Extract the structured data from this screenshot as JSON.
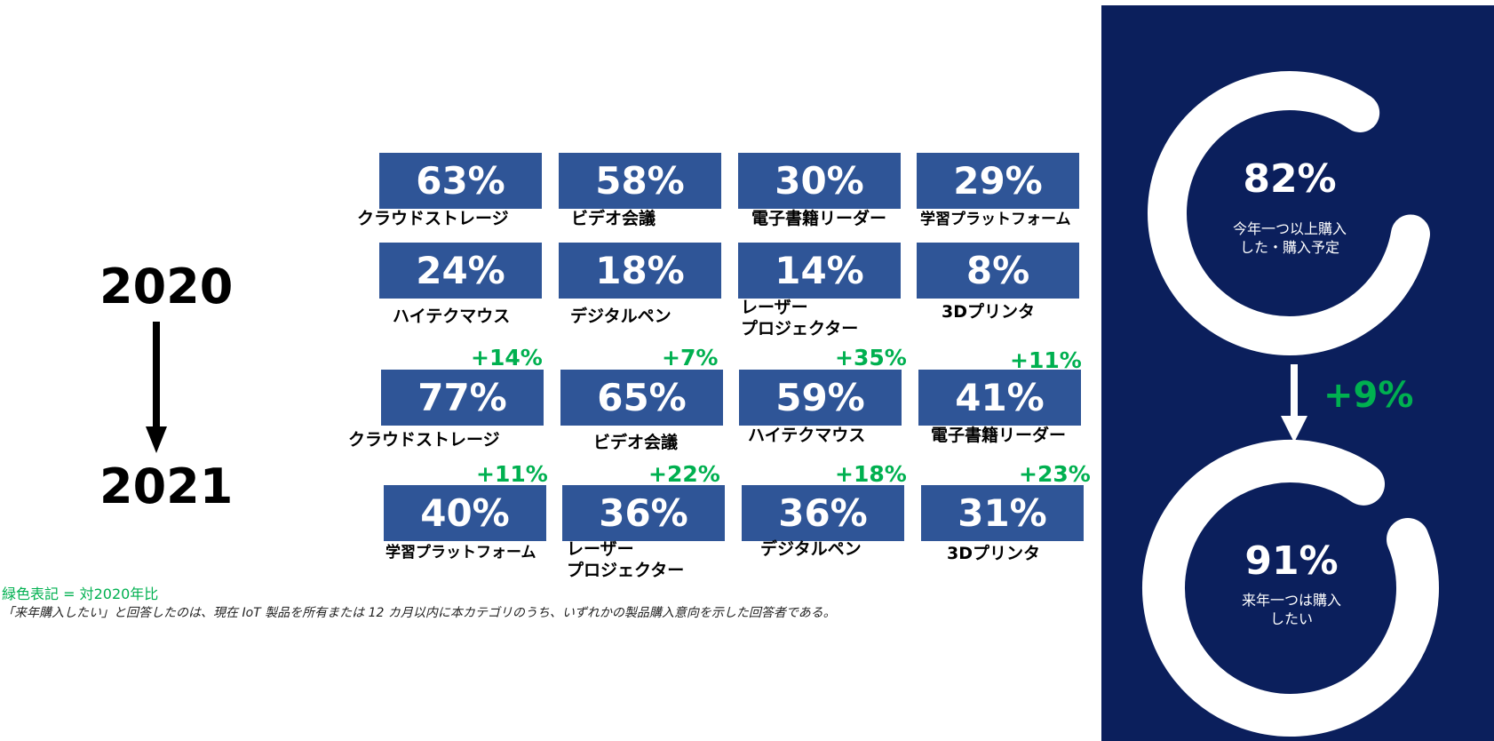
{
  "years": {
    "from": "2020",
    "to": "2021"
  },
  "chart_data": [
    {
      "type": "table",
      "year": "2020",
      "rows": [
        [
          {
            "product": "クラウドストレージ",
            "value": "63%"
          },
          {
            "product": "ビデオ会議",
            "value": "58%"
          },
          {
            "product": "電子書籍リーダー",
            "value": "30%"
          },
          {
            "product": "学習プラットフォーム",
            "value": "29%"
          }
        ],
        [
          {
            "product": "ハイテクマウス",
            "value": "24%"
          },
          {
            "product": "デジタルペン",
            "value": "18%"
          },
          {
            "product": "レーザー\nプロジェクター",
            "value": "14%"
          },
          {
            "product": "3Dプリンタ",
            "value": "8%"
          }
        ]
      ]
    },
    {
      "type": "table",
      "year": "2021",
      "rows": [
        [
          {
            "product": "クラウドストレージ",
            "value": "77%",
            "change": "+14%"
          },
          {
            "product": "ビデオ会議",
            "value": "65%",
            "change": "+7%"
          },
          {
            "product": "ハイテクマウス",
            "value": "59%",
            "change": "+35%"
          },
          {
            "product": "電子書籍リーダー",
            "value": "41%",
            "change": "+11%"
          }
        ],
        [
          {
            "product": "学習プラットフォーム",
            "value": "40%",
            "change": "+11%"
          },
          {
            "product": "レーザー\nプロジェクター",
            "value": "36%",
            "change": "+22%"
          },
          {
            "product": "デジタルペン",
            "value": "36%",
            "change": "+18%"
          },
          {
            "product": "3Dプリンタ",
            "value": "31%",
            "change": "+23%"
          }
        ]
      ]
    },
    {
      "type": "pie",
      "values": [
        82,
        91
      ],
      "labels": [
        "今年一つ以上購入\nした・購入予定",
        "来年一つは購入\nしたい"
      ],
      "display": [
        "82%",
        "91%"
      ],
      "change": "+9%"
    }
  ],
  "notes": {
    "legend": "緑色表記 = 対2020年比",
    "footnote": "「来年購入したい」と回答したのは、現在 IoT 製品を所有または 12 カ月以内に本カテゴリのうち、いずれかの製品購入意向を示した回答者である。"
  },
  "colors": {
    "tile": "#2f5597",
    "panel": "#0b1f5c",
    "change": "#00b050",
    "ring": "#ffffff"
  }
}
